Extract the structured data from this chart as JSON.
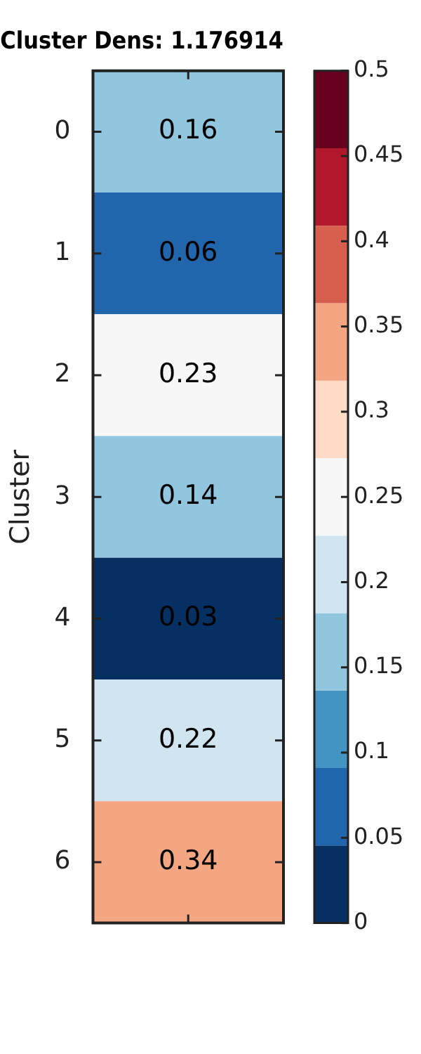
{
  "chart_data": {
    "type": "heatmap",
    "title": "Cluster Dens: 1.176914",
    "ylabel": "Cluster",
    "categories": [
      null
    ],
    "y_categories": [
      "0",
      "1",
      "2",
      "3",
      "4",
      "5",
      "6"
    ],
    "cells": [
      [
        0.16
      ],
      [
        0.06
      ],
      [
        0.23
      ],
      [
        0.14
      ],
      [
        0.03
      ],
      [
        0.22
      ],
      [
        0.34
      ]
    ],
    "data_labels": true,
    "clim": [
      0,
      0.5
    ],
    "cticks": [
      0,
      0.05,
      0.1,
      0.15,
      0.2,
      0.25,
      0.3,
      0.35,
      0.4,
      0.45,
      0.5
    ],
    "colors": [
      "#053061",
      "#2166ac",
      "#4393c3",
      "#92c5de",
      "#d1e5f0",
      "#f7f7f7",
      "#fddbc7",
      "#f4a582",
      "#d6604d",
      "#b2182b",
      "#67001f"
    ]
  }
}
